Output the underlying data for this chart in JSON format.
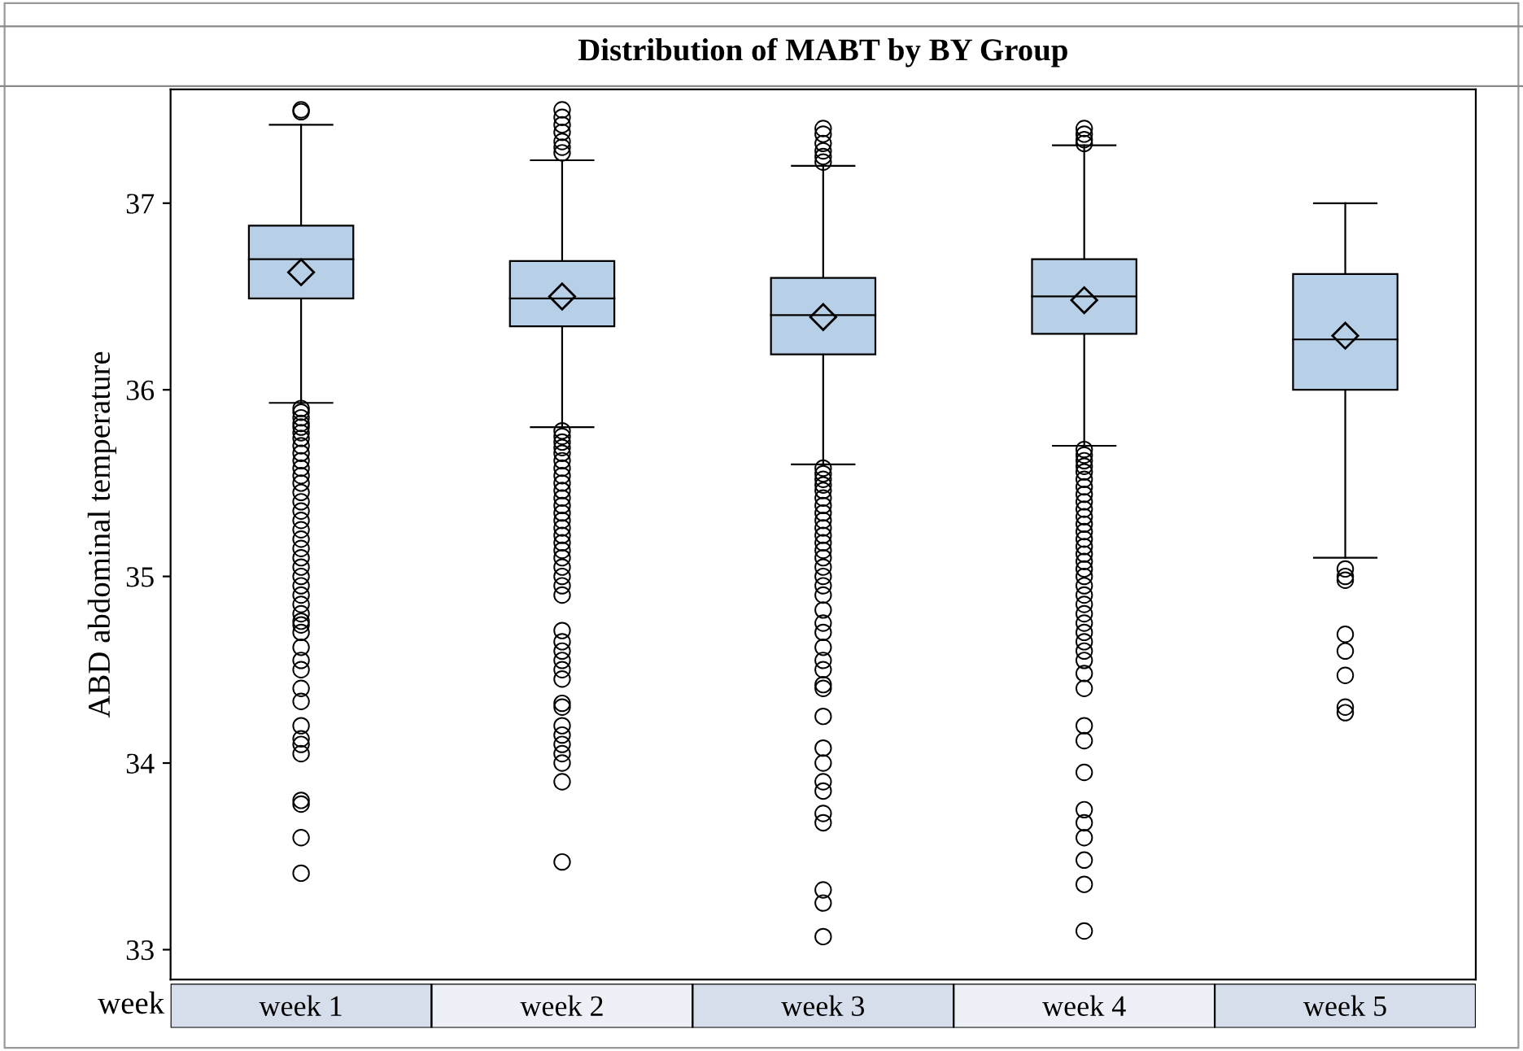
{
  "chart_data": {
    "type": "box",
    "title": "Distribution of MABT by BY Group",
    "ylabel": "ABD abdominal temperature",
    "xlabel": "week",
    "categories": [
      "week 1",
      "week 2",
      "week 3",
      "week 4",
      "week 5"
    ],
    "color": "#b8cfe8",
    "boxes": [
      {
        "low": 35.93,
        "q1": 36.49,
        "median": 36.7,
        "q3": 36.88,
        "high": 37.42,
        "mean": 36.63,
        "outliers": [
          37.5,
          37.49,
          35.9,
          35.88,
          35.85,
          35.82,
          35.8,
          35.77,
          35.74,
          35.7,
          35.66,
          35.62,
          35.58,
          35.54,
          35.5,
          35.45,
          35.4,
          35.35,
          35.3,
          35.25,
          35.2,
          35.15,
          35.1,
          35.05,
          35.0,
          34.95,
          34.9,
          34.85,
          34.8,
          34.76,
          34.74,
          34.7,
          34.62,
          34.55,
          34.5,
          34.4,
          34.33,
          34.2,
          34.13,
          34.1,
          34.05,
          33.8,
          33.78,
          33.6,
          33.41
        ]
      },
      {
        "low": 35.8,
        "q1": 36.34,
        "median": 36.49,
        "q3": 36.69,
        "high": 37.23,
        "mean": 36.5,
        "outliers": [
          37.5,
          37.46,
          37.42,
          37.38,
          37.33,
          37.3,
          37.27,
          35.78,
          35.75,
          35.72,
          35.69,
          35.66,
          35.62,
          35.58,
          35.54,
          35.5,
          35.46,
          35.42,
          35.38,
          35.34,
          35.3,
          35.26,
          35.22,
          35.18,
          35.14,
          35.1,
          35.05,
          35.0,
          34.95,
          34.9,
          34.71,
          34.65,
          34.6,
          34.55,
          34.5,
          34.45,
          34.32,
          34.3,
          34.2,
          34.15,
          34.1,
          34.05,
          34.0,
          33.9,
          33.47
        ]
      },
      {
        "low": 35.6,
        "q1": 36.19,
        "median": 36.4,
        "q3": 36.6,
        "high": 37.2,
        "mean": 36.39,
        "outliers": [
          37.4,
          37.37,
          37.32,
          37.28,
          37.25,
          37.22,
          35.58,
          35.55,
          35.52,
          35.49,
          35.46,
          35.42,
          35.38,
          35.34,
          35.3,
          35.26,
          35.22,
          35.18,
          35.14,
          35.1,
          35.05,
          35.0,
          34.95,
          34.9,
          34.82,
          34.75,
          34.7,
          34.62,
          34.55,
          34.5,
          34.42,
          34.4,
          34.25,
          34.08,
          34.0,
          33.9,
          33.85,
          33.73,
          33.68,
          33.32,
          33.25,
          33.07
        ]
      },
      {
        "low": 35.7,
        "q1": 36.3,
        "median": 36.5,
        "q3": 36.7,
        "high": 37.31,
        "mean": 36.48,
        "outliers": [
          37.4,
          37.37,
          37.34,
          37.32,
          35.68,
          35.65,
          35.62,
          35.59,
          35.56,
          35.52,
          35.48,
          35.44,
          35.4,
          35.36,
          35.32,
          35.28,
          35.24,
          35.2,
          35.16,
          35.12,
          35.08,
          35.04,
          35.0,
          34.95,
          34.9,
          34.85,
          34.8,
          34.75,
          34.7,
          34.65,
          34.6,
          34.55,
          34.48,
          34.4,
          34.2,
          34.12,
          33.95,
          33.75,
          33.68,
          33.6,
          33.48,
          33.35,
          33.1
        ]
      },
      {
        "low": 35.1,
        "q1": 36.0,
        "median": 36.27,
        "q3": 36.62,
        "high": 37.0,
        "mean": 36.29,
        "outliers": [
          35.04,
          35.0,
          34.98,
          34.69,
          34.6,
          34.47,
          34.3,
          34.27
        ]
      }
    ],
    "ylim": [
      32.84,
      37.61
    ],
    "yticks": [
      33,
      34,
      35,
      36,
      37
    ],
    "marker": "circle"
  }
}
